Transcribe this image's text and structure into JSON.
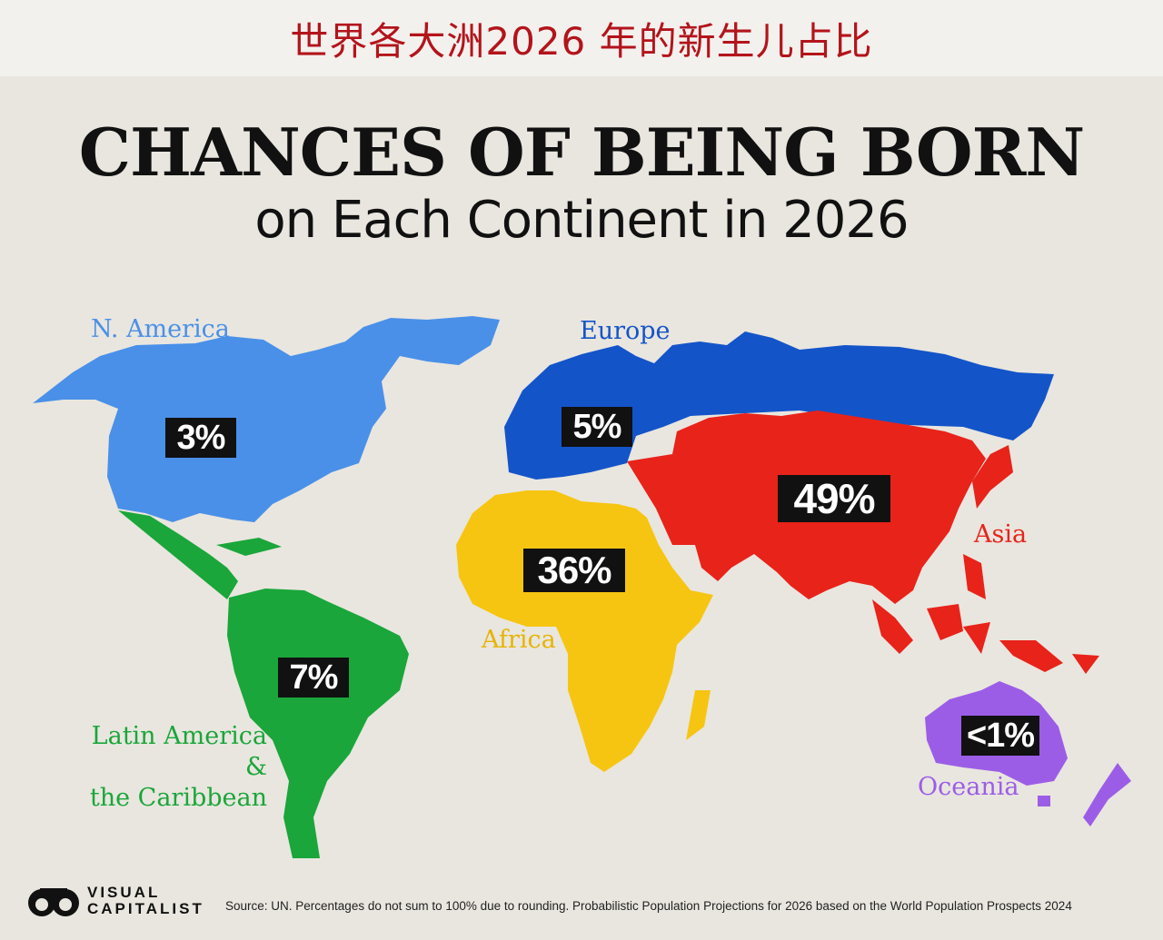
{
  "banner": {
    "text": "世界各大洲2026 年的新生儿占比"
  },
  "title": "CHANCES OF BEING BORN",
  "subtitle": "on Each Continent in 2026",
  "colors": {
    "north_america": "#4a90e8",
    "europe": "#1454c9",
    "asia": "#e8231a",
    "africa": "#f6c512",
    "latin_america": "#1aa63a",
    "oceania": "#9c5de6",
    "banner_text": "#b3141b",
    "background": "#e9e6df"
  },
  "regions": [
    {
      "id": "north_america",
      "name": "N. America",
      "percent": "3%"
    },
    {
      "id": "europe",
      "name": "Europe",
      "percent": "5%"
    },
    {
      "id": "asia",
      "name": "Asia",
      "percent": "49%"
    },
    {
      "id": "africa",
      "name": "Africa",
      "percent": "36%"
    },
    {
      "id": "latin_america",
      "name_line1": "Latin America &",
      "name_line2": "the Caribbean",
      "percent": "7%"
    },
    {
      "id": "oceania",
      "name": "Oceania",
      "percent": "<1%"
    }
  ],
  "logo": {
    "line1": "VISUAL",
    "line2": "CAPITALIST"
  },
  "source": "Source: UN. Percentages do not sum to 100% due to rounding. Probabilistic Population Projections for 2026 based on the World Population Prospects 2024"
}
